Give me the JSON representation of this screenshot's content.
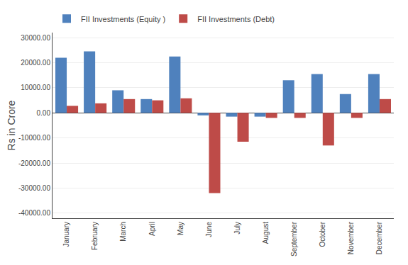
{
  "chart_data": {
    "type": "bar",
    "categories": [
      "January",
      "February",
      "March",
      "April",
      "May",
      "June",
      "July",
      "August",
      "September",
      "October",
      "November",
      "December"
    ],
    "series": [
      {
        "name": "FII Investments (Equity )",
        "color": "#4F81BD",
        "values": [
          22000,
          24500,
          9000,
          5500,
          22500,
          -1000,
          -1500,
          -1500,
          13000,
          15500,
          7500,
          15500
        ]
      },
      {
        "name": "FII Investments (Debt)",
        "color": "#BE4B48",
        "values": [
          2800,
          3800,
          5500,
          5000,
          5800,
          -32000,
          -11500,
          -2000,
          -2000,
          -13000,
          -2000,
          5500
        ]
      }
    ],
    "ylabel": "Rs in Crore",
    "ylim": [
      -42000,
      32000
    ],
    "yticks": [
      {
        "value": -40000,
        "label": "-40000.00"
      },
      {
        "value": -30000,
        "label": "-30000.00"
      },
      {
        "value": -20000,
        "label": "-20000.00"
      },
      {
        "value": -10000,
        "label": "-10000.00"
      },
      {
        "value": 0,
        "label": "0.00"
      },
      {
        "value": 10000,
        "label": "10000.00"
      },
      {
        "value": 20000,
        "label": "20000.00"
      },
      {
        "value": 30000,
        "label": "30000.00"
      }
    ],
    "grid": true,
    "legend": "upper left"
  }
}
